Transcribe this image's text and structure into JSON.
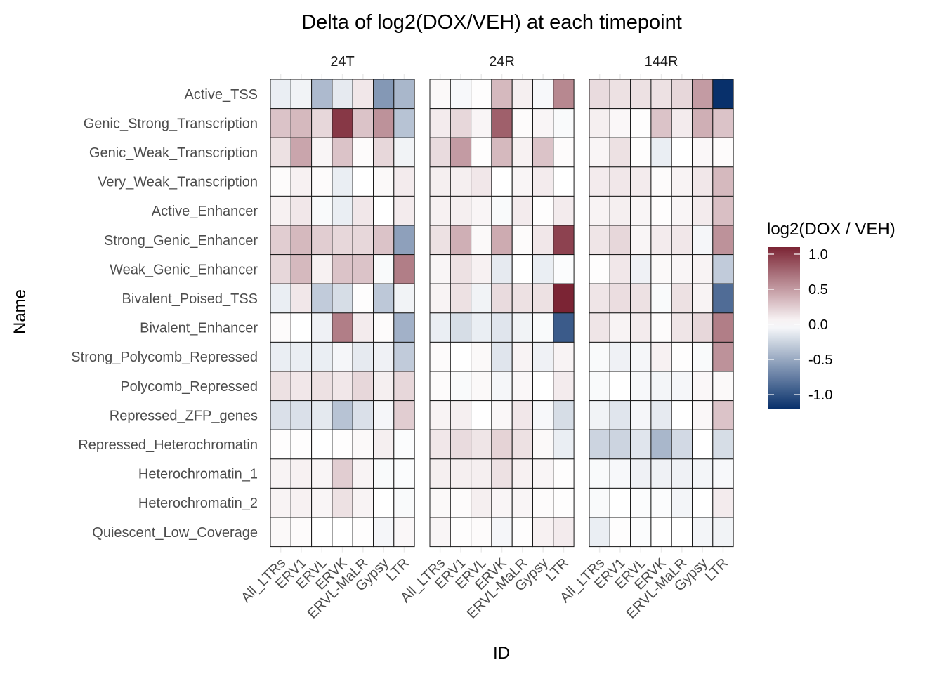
{
  "chart_data": {
    "type": "heatmap",
    "title": "Delta of log2(DOX/VEH) at each timepoint",
    "xlabel": "ID",
    "ylabel": "Name",
    "facets": [
      "24T",
      "24R",
      "144R"
    ],
    "x_categories": [
      "All_LTRs",
      "ERV1",
      "ERVL",
      "ERVK",
      "ERVL-MaLR",
      "Gypsy",
      "LTR"
    ],
    "y_categories": [
      "Active_TSS",
      "Genic_Strong_Transcription",
      "Genic_Weak_Transcription",
      "Very_Weak_Transcription",
      "Active_Enhancer",
      "Strong_Genic_Enhancer",
      "Weak_Genic_Enhancer",
      "Bivalent_Poised_TSS",
      "Bivalent_Enhancer",
      "Strong_Polycomb_Repressed",
      "Polycomb_Repressed",
      "Repressed_ZFP_genes",
      "Repressed_Heterochromatin",
      "Heterochromatin_1",
      "Heterochromatin_2",
      "Quiescent_Low_Coverage"
    ],
    "legend": {
      "title": "log2(DOX / VEH)",
      "ticks": [
        "1.0",
        "0.5",
        "0.0",
        "-0.5",
        "-1.0"
      ],
      "tick_values": [
        1.0,
        0.5,
        0.0,
        -0.5,
        -1.0
      ],
      "range": [
        -1.2,
        1.1
      ],
      "low_color": "#08306b",
      "mid_color": "#ffffff",
      "high_color": "#7b2434",
      "placement": "right"
    },
    "values": {
      "24T": [
        [
          -0.1,
          -0.07,
          -0.4,
          -0.12,
          0.12,
          -0.6,
          -0.42
        ],
        [
          0.3,
          0.35,
          0.2,
          1.0,
          0.3,
          0.55,
          -0.35
        ],
        [
          0.15,
          0.45,
          0.05,
          0.3,
          0.02,
          0.2,
          -0.07
        ],
        [
          0.02,
          0.07,
          0.02,
          -0.1,
          0.0,
          0.03,
          0.1
        ],
        [
          0.07,
          0.12,
          -0.03,
          -0.1,
          0.12,
          0.0,
          0.1
        ],
        [
          0.25,
          0.35,
          0.25,
          0.2,
          0.2,
          0.3,
          -0.55
        ],
        [
          0.2,
          0.35,
          0.07,
          0.3,
          0.3,
          -0.03,
          0.65
        ],
        [
          -0.1,
          0.12,
          -0.3,
          -0.2,
          0.01,
          -0.32,
          -0.07
        ],
        [
          0.02,
          0.0,
          -0.08,
          0.65,
          0.1,
          0.02,
          -0.45
        ],
        [
          -0.1,
          -0.1,
          -0.1,
          -0.05,
          -0.12,
          -0.08,
          -0.3
        ],
        [
          0.15,
          0.12,
          0.15,
          0.12,
          0.2,
          0.08,
          0.2
        ],
        [
          -0.18,
          -0.18,
          -0.13,
          -0.35,
          -0.18,
          -0.05,
          0.25
        ],
        [
          0.01,
          0.01,
          0.0,
          0.01,
          0.03,
          0.08,
          -0.02
        ],
        [
          0.06,
          0.07,
          0.05,
          0.25,
          0.06,
          -0.03,
          -0.02
        ],
        [
          0.06,
          0.07,
          0.05,
          0.15,
          0.06,
          0.0,
          -0.03
        ],
        [
          0.03,
          0.02,
          0.0,
          0.0,
          0.01,
          -0.05,
          0.04
        ]
      ],
      "24R": [
        [
          0.03,
          -0.04,
          0.01,
          0.35,
          0.08,
          -0.04,
          0.6
        ],
        [
          0.1,
          0.2,
          0.05,
          0.8,
          0.02,
          0.05,
          -0.03
        ],
        [
          0.18,
          0.5,
          0.01,
          0.35,
          0.07,
          0.3,
          0.02
        ],
        [
          0.08,
          0.08,
          0.12,
          0.0,
          0.05,
          0.1,
          0.0
        ],
        [
          0.07,
          0.08,
          0.05,
          -0.03,
          0.1,
          0.01,
          0.1
        ],
        [
          0.15,
          0.4,
          0.03,
          0.42,
          0.02,
          0.12,
          0.95
        ],
        [
          0.05,
          0.15,
          0.07,
          -0.12,
          0.0,
          -0.1,
          -0.02
        ],
        [
          0.06,
          0.15,
          -0.07,
          0.18,
          0.15,
          0.15,
          1.1
        ],
        [
          -0.1,
          -0.2,
          -0.1,
          -0.15,
          -0.07,
          -0.03,
          -0.95
        ],
        [
          0.02,
          0.0,
          0.03,
          -0.15,
          0.06,
          -0.08,
          0.06
        ],
        [
          0.02,
          -0.03,
          0.03,
          -0.05,
          0.04,
          0.0,
          0.1
        ],
        [
          0.06,
          0.08,
          0.0,
          0.04,
          0.12,
          -0.04,
          -0.2
        ],
        [
          0.12,
          0.18,
          0.13,
          0.22,
          0.15,
          0.03,
          -0.1
        ],
        [
          0.08,
          0.08,
          0.08,
          0.15,
          0.07,
          0.05,
          0.01
        ],
        [
          0.03,
          0.02,
          0.08,
          0.05,
          0.05,
          0.02,
          0.01
        ],
        [
          0.05,
          0.01,
          0.02,
          -0.05,
          0.01,
          0.07,
          0.1
        ]
      ],
      "144R": [
        [
          0.18,
          0.15,
          0.15,
          0.15,
          0.2,
          0.5,
          -1.2
        ],
        [
          0.08,
          0.04,
          0.01,
          0.3,
          0.1,
          0.4,
          0.3
        ],
        [
          0.05,
          0.15,
          0.01,
          -0.1,
          0.0,
          0.04,
          0.02
        ],
        [
          0.1,
          0.12,
          0.1,
          0.02,
          0.06,
          0.12,
          0.35
        ],
        [
          0.06,
          0.08,
          0.05,
          0.01,
          0.05,
          0.1,
          0.32
        ],
        [
          0.13,
          0.2,
          0.05,
          0.1,
          0.12,
          -0.05,
          0.55
        ],
        [
          0.01,
          0.12,
          -0.08,
          0.03,
          0.05,
          0.06,
          -0.3
        ],
        [
          0.13,
          0.17,
          0.15,
          -0.03,
          0.15,
          0.06,
          -0.85
        ],
        [
          0.13,
          0.06,
          0.1,
          0.02,
          0.13,
          0.2,
          0.65
        ],
        [
          -0.03,
          -0.08,
          -0.05,
          0.07,
          0.01,
          -0.03,
          0.55
        ],
        [
          -0.03,
          0.0,
          -0.04,
          -0.06,
          -0.05,
          0.04,
          0.03
        ],
        [
          -0.07,
          -0.15,
          -0.05,
          -0.12,
          0.0,
          0.04,
          0.3
        ],
        [
          -0.25,
          -0.25,
          -0.15,
          -0.42,
          -0.22,
          0.0,
          -0.2
        ],
        [
          -0.03,
          -0.04,
          -0.08,
          -0.08,
          -0.08,
          -0.06,
          -0.04
        ],
        [
          -0.03,
          0.0,
          -0.02,
          -0.02,
          -0.06,
          0.0,
          0.1
        ],
        [
          -0.1,
          0.01,
          -0.02,
          0.0,
          0.0,
          -0.06,
          -0.07
        ]
      ]
    }
  }
}
